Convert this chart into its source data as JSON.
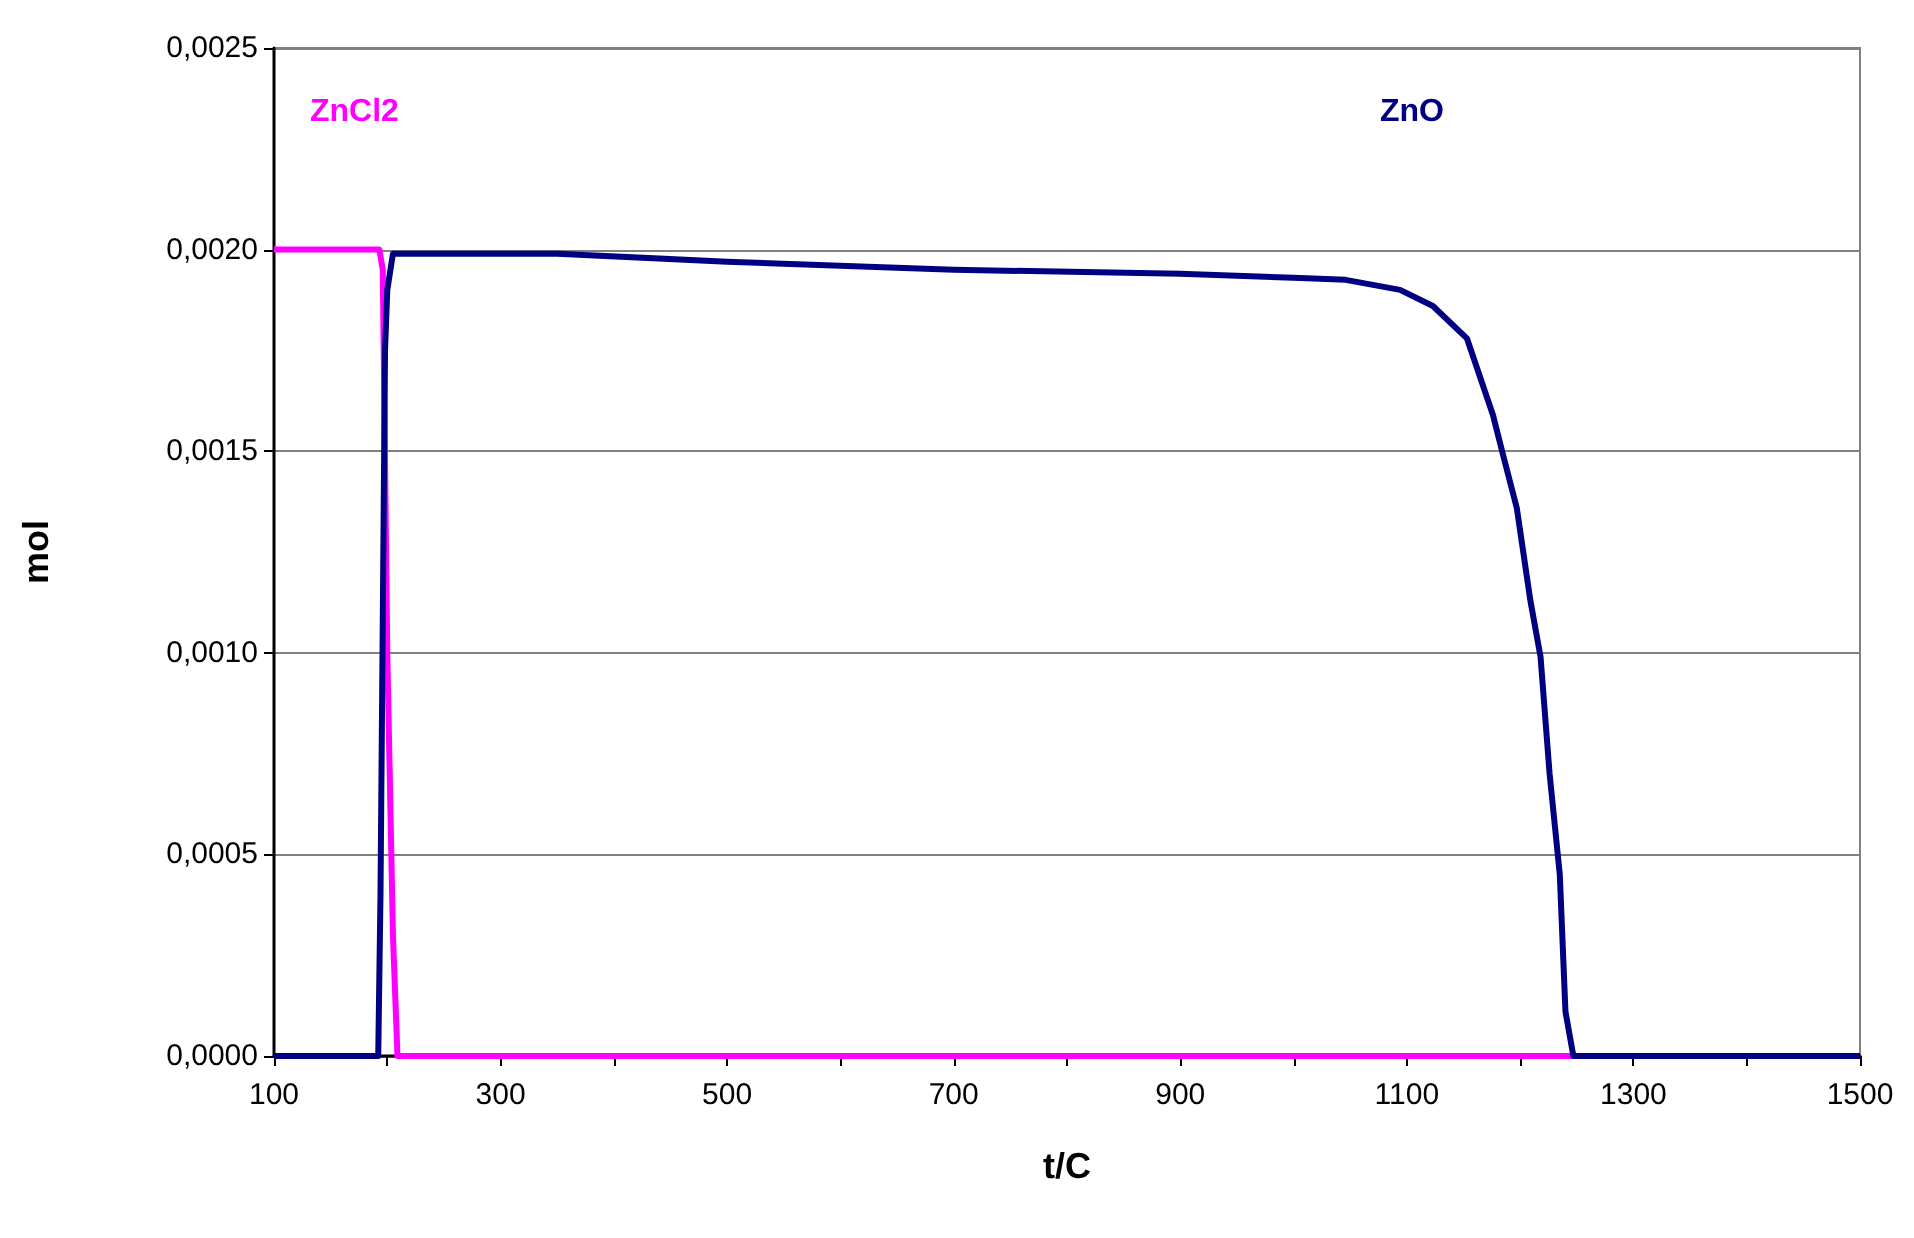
{
  "chart_data": {
    "type": "line",
    "xlabel": "t/C",
    "ylabel": "mol",
    "xlim": [
      100,
      1500
    ],
    "xticks": [
      100,
      {
        "value": 200,
        "label": null
      },
      300,
      {
        "value": 400,
        "label": null
      },
      500,
      {
        "value": 600,
        "label": null
      },
      700,
      {
        "value": 800,
        "label": null
      },
      900,
      {
        "value": 1000,
        "label": null
      },
      1100,
      {
        "value": 1200,
        "label": null
      },
      1300,
      {
        "value": 1400,
        "label": null
      },
      1500
    ],
    "ylim": [
      0,
      0.0025
    ],
    "yticks": [
      {
        "value": 0,
        "label": "0,0000"
      },
      {
        "value": 0.0005,
        "label": "0,0005"
      },
      {
        "value": 0.001,
        "label": "0,0010"
      },
      {
        "value": 0.0015,
        "label": "0,0015"
      },
      {
        "value": 0.002,
        "label": "0,0020"
      },
      {
        "value": 0.0025,
        "label": "0,0025"
      }
    ],
    "grid": "y",
    "legend": false,
    "marker": "none",
    "line_style": "solid",
    "series": [
      {
        "name": "ZnCl2",
        "color": "#ff00ff",
        "x": [
          100,
          193,
          196,
          200,
          205,
          209,
          1500
        ],
        "values": [
          0.002,
          0.002,
          0.00195,
          0.001,
          0.0003,
          0,
          0
        ]
      },
      {
        "name": "ZnO",
        "color": "#000080",
        "x": [
          100,
          192,
          194,
          198,
          200,
          205,
          350,
          500,
          700,
          900,
          1000,
          1046,
          1094,
          1123,
          1153,
          1176,
          1185,
          1197,
          1209,
          1218,
          1226,
          1235,
          1240,
          1247,
          1500
        ],
        "values": [
          0,
          0,
          0.0004,
          0.00175,
          0.0019,
          0.00199,
          0.00199,
          0.00197,
          0.00195,
          0.00194,
          0.00193,
          0.001925,
          0.0019,
          0.00186,
          0.00178,
          0.00159,
          0.00149,
          0.00136,
          0.00113,
          0.00099,
          0.0007,
          0.00045,
          0.00011,
          0,
          0
        ]
      }
    ]
  }
}
